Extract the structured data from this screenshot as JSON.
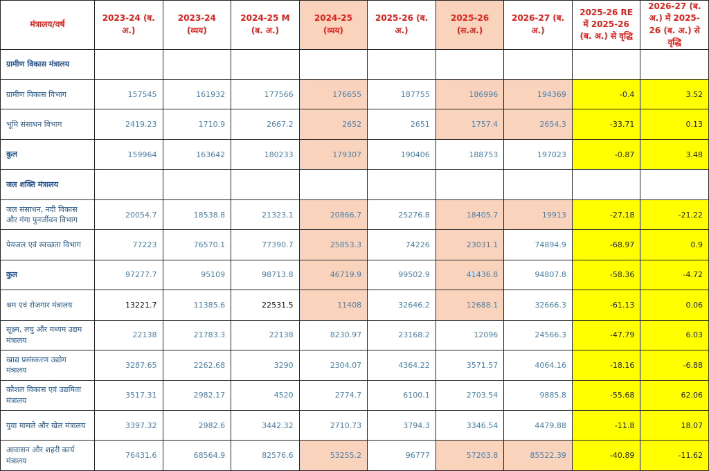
{
  "table": {
    "header": [
      "मंत्रालय/वर्ष",
      "2023-24 (ब. अ.)",
      "2023-24 (व्यय)",
      "2024-25 M (ब. अ.)",
      "2024-25 (व्यय)",
      "2025-26 (ब. अ.)",
      "2025-26 (स.अ.)",
      "2026-27 (ब. अ.)",
      "2025-26 RE में 2025-26 (ब. अ.) से वृद्धि",
      "2026-27 (ब. अ.) में 2025-26 (ब. अ.) से वृद्धि"
    ],
    "rows": [
      [
        "ग्रामीण विकास मंत्रालय"
      ],
      [
        "ग्रामीण विकास विभाग",
        157545,
        161932,
        177566,
        176655,
        187755,
        186996,
        194369,
        -0.4,
        3.52
      ],
      [
        "भूमि संसाधन विभाग",
        2419.23,
        1710.9,
        2667.2,
        2652,
        2651,
        1757.4,
        2654.3,
        -33.71,
        0.13
      ],
      [
        "कुल",
        159964,
        163642,
        180233,
        179307,
        190406,
        188753,
        197023,
        -0.87,
        3.48
      ],
      [
        "जल शक्ति मंत्रालय"
      ],
      [
        "जल संसाधन, नदी विकास और गंगा पुनर्जीवन विभाग",
        20054.7,
        18538.8,
        21323.1,
        20866.7,
        25276.8,
        18405.7,
        19913,
        -27.18,
        -21.22
      ],
      [
        "पेयजल एवं स्वच्छता विभाग",
        77223,
        76570.1,
        77390.7,
        25853.3,
        74226,
        23031.1,
        74894.9,
        -68.97,
        0.9
      ],
      [
        "कुल",
        97277.7,
        95109,
        98713.8,
        46719.9,
        99502.9,
        41436.8,
        94807.8,
        -58.36,
        -4.72
      ],
      [
        "श्रम एवं रोजगार मंत्रालय",
        13221.7,
        11385.6,
        22531.5,
        11408,
        32646.2,
        12688.1,
        32666.3,
        -61.13,
        0.06
      ],
      [
        "सूक्ष्म, लघु और मध्यम उद्यम मंत्रालय",
        22138,
        21783.3,
        22138,
        8230.97,
        23168.2,
        12096,
        24566.3,
        -47.79,
        6.03
      ],
      [
        "खाद्य प्रसंस्करण उद्योग मंत्रालय",
        3287.65,
        2262.68,
        3290,
        2304.07,
        4364.22,
        3571.57,
        4064.16,
        -18.16,
        -6.88
      ],
      [
        "कौशल विकास एवं उद्यमिता मंत्रालय",
        3517.31,
        2982.17,
        4520,
        2774.7,
        6100.1,
        2703.54,
        9885.8,
        -55.68,
        62.06
      ],
      [
        "युवा मामले और खेल मंत्रालय",
        3397.32,
        2982.6,
        3442.32,
        2710.73,
        3794.3,
        3346.54,
        4479.88,
        -11.8,
        18.07
      ],
      [
        "आवासन और शहरी कार्य मंत्रालय",
        76431.6,
        68564.9,
        82576.6,
        53255.2,
        96777,
        57203.8,
        85522.39,
        -40.89,
        -11.62
      ]
    ]
  }
}
